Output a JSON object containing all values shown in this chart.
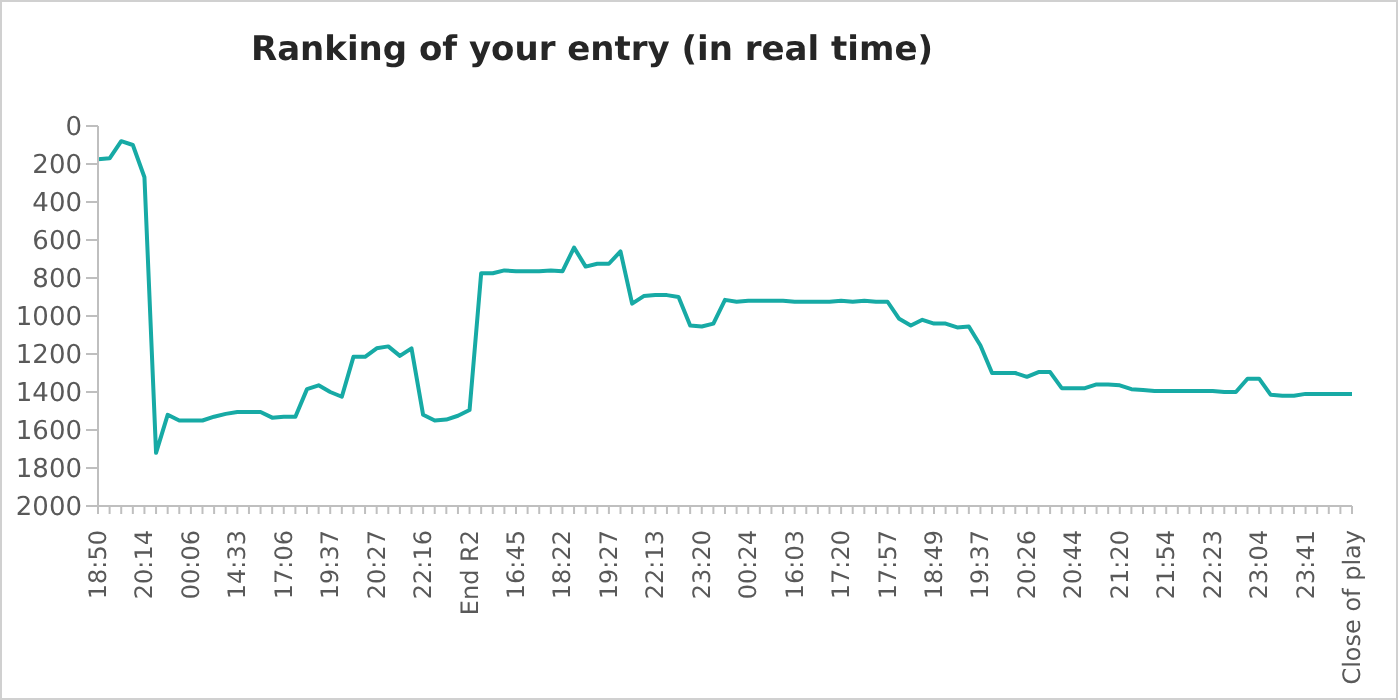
{
  "chart_data": {
    "type": "line",
    "title": "Ranking of your entry (in real time)",
    "categories": [
      "18:50",
      null,
      null,
      null,
      "20:14",
      null,
      null,
      null,
      "00:06",
      null,
      null,
      null,
      "14:33",
      null,
      null,
      null,
      "17:06",
      null,
      null,
      null,
      "19:37",
      null,
      null,
      null,
      "20:27",
      null,
      null,
      null,
      "22:16",
      null,
      null,
      null,
      "End R2",
      null,
      null,
      null,
      "16:45",
      null,
      null,
      null,
      "18:22",
      null,
      null,
      null,
      "19:27",
      null,
      null,
      null,
      "22:13",
      null,
      null,
      null,
      "23:20",
      null,
      null,
      null,
      "00:24",
      null,
      null,
      null,
      "16:03",
      null,
      null,
      null,
      "17:20",
      null,
      null,
      null,
      "17:57",
      null,
      null,
      null,
      "18:49",
      null,
      null,
      null,
      "19:37",
      null,
      null,
      null,
      "20:26",
      null,
      null,
      null,
      "20:44",
      null,
      null,
      null,
      "21:20",
      null,
      null,
      null,
      "21:54",
      null,
      null,
      null,
      "22:23",
      null,
      null,
      null,
      "23:04",
      null,
      null,
      null,
      "23:41",
      null,
      null,
      null,
      "Close of play"
    ],
    "series": [
      {
        "color": "#17aaa5",
        "values": [
          175,
          170,
          80,
          100,
          270,
          1720,
          1520,
          1550,
          1550,
          1550,
          1530,
          1515,
          1505,
          1505,
          1505,
          1535,
          1530,
          1530,
          1385,
          1365,
          1400,
          1425,
          1215,
          1215,
          1170,
          1160,
          1210,
          1170,
          1520,
          1550,
          1545,
          1525,
          1495,
          775,
          775,
          760,
          765,
          765,
          765,
          760,
          765,
          640,
          740,
          725,
          725,
          660,
          935,
          895,
          890,
          890,
          900,
          1050,
          1055,
          1040,
          915,
          925,
          920,
          920,
          920,
          920,
          925,
          925,
          925,
          925,
          920,
          925,
          920,
          925,
          925,
          1015,
          1050,
          1020,
          1040,
          1040,
          1060,
          1055,
          1155,
          1300,
          1300,
          1300,
          1320,
          1295,
          1295,
          1380,
          1380,
          1380,
          1360,
          1360,
          1365,
          1385,
          1390,
          1395,
          1395,
          1395,
          1395,
          1395,
          1395,
          1400,
          1400,
          1330,
          1330,
          1415,
          1420,
          1420,
          1410,
          1410,
          1410,
          1410,
          1410
        ]
      }
    ],
    "ylim": [
      2000,
      0
    ],
    "yticks": [
      0,
      200,
      400,
      600,
      800,
      1000,
      1200,
      1400,
      1600,
      1800,
      2000
    ],
    "grid": false,
    "legend": false,
    "marker": "none",
    "line_style": "solid"
  }
}
